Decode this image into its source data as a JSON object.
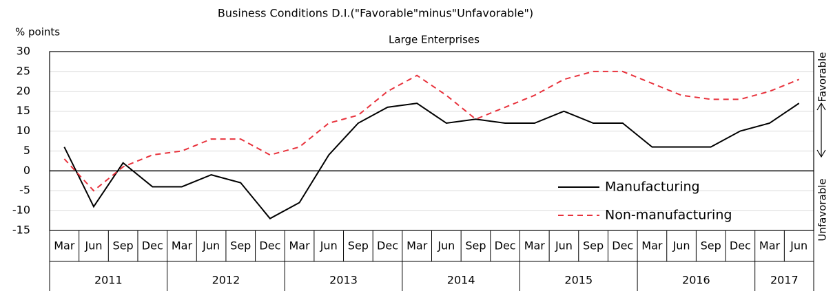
{
  "chart_data": {
    "type": "line",
    "title": "Business Conditions D.I.(\"Favorable\"minus\"Unfavorable\")",
    "subtitle": "Large Enterprises",
    "y_label": "% points",
    "right_labels": {
      "top": "Favorable",
      "bottom": "Unfavorable"
    },
    "categories": [
      "Mar",
      "Jun",
      "Sep",
      "Dec",
      "Mar",
      "Jun",
      "Sep",
      "Dec",
      "Mar",
      "Jun",
      "Sep",
      "Dec",
      "Mar",
      "Jun",
      "Sep",
      "Dec",
      "Mar",
      "Jun",
      "Sep",
      "Dec",
      "Mar",
      "Jun",
      "Sep",
      "Dec",
      "Mar",
      "Jun"
    ],
    "years": [
      "2011",
      "2012",
      "2013",
      "2014",
      "2015",
      "2016",
      "2017"
    ],
    "series": [
      {
        "name": "Manufacturing",
        "color": "#000000",
        "dash": false,
        "values": [
          6,
          -9,
          2,
          -4,
          -4,
          -1,
          -3,
          -12,
          -8,
          4,
          12,
          16,
          17,
          12,
          13,
          12,
          12,
          15,
          12,
          12,
          6,
          6,
          6,
          10,
          12,
          17
        ]
      },
      {
        "name": "Non-manufacturing",
        "color": "#e8323c",
        "dash": true,
        "values": [
          3,
          -5,
          1,
          4,
          5,
          8,
          8,
          4,
          6,
          12,
          14,
          20,
          24,
          19,
          13,
          16,
          19,
          23,
          25,
          25,
          22,
          19,
          18,
          18,
          20,
          23
        ]
      }
    ],
    "ylim": [
      -15,
      30
    ],
    "yticks": [
      -15,
      -10,
      -5,
      0,
      5,
      10,
      15,
      20,
      25,
      30
    ],
    "grid": true,
    "legend": "lower right"
  }
}
